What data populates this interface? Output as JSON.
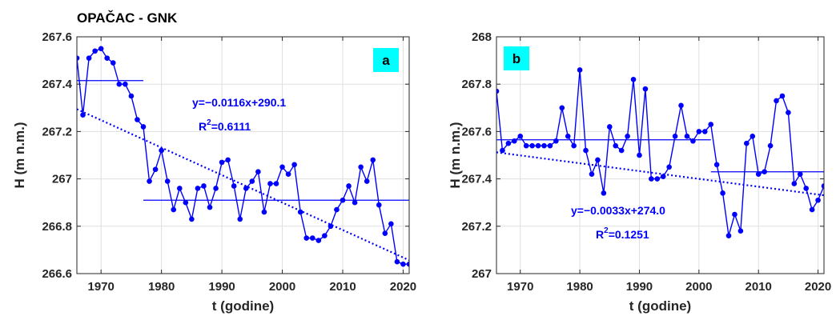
{
  "figure_title": "OPAČAC - GNK",
  "colors": {
    "series": "#0000ff",
    "label_box": "#00ffff",
    "axis": "#262626"
  },
  "chart_data": [
    {
      "type": "line",
      "panel_label": "a",
      "xlabel": "t (godine)",
      "ylabel": "H (m n.m.)",
      "xlim": [
        1966,
        2021
      ],
      "ylim": [
        266.6,
        267.6
      ],
      "xticks": [
        1970,
        1980,
        1990,
        2000,
        2010,
        2020
      ],
      "yticks": [
        266.6,
        266.8,
        267,
        267.2,
        267.4,
        267.6
      ],
      "ytick_labels": [
        "266.6",
        "266.8",
        "267",
        "267.2",
        "267.4",
        "267.6"
      ],
      "grid": true,
      "x": [
        1966,
        1967,
        1968,
        1969,
        1970,
        1971,
        1972,
        1973,
        1974,
        1975,
        1976,
        1977,
        1978,
        1979,
        1980,
        1981,
        1982,
        1983,
        1984,
        1985,
        1986,
        1987,
        1988,
        1989,
        1990,
        1991,
        1992,
        1993,
        1994,
        1995,
        1996,
        1997,
        1998,
        1999,
        2000,
        2001,
        2002,
        2003,
        2004,
        2005,
        2006,
        2007,
        2008,
        2009,
        2010,
        2011,
        2012,
        2013,
        2014,
        2015,
        2016,
        2017,
        2018,
        2019,
        2020,
        2021
      ],
      "y": [
        267.51,
        267.27,
        267.51,
        267.54,
        267.55,
        267.51,
        267.49,
        267.4,
        267.4,
        267.35,
        267.25,
        267.22,
        266.99,
        267.04,
        267.12,
        266.99,
        266.87,
        266.96,
        266.9,
        266.83,
        266.96,
        266.97,
        266.88,
        266.96,
        267.07,
        267.08,
        266.97,
        266.83,
        266.96,
        266.99,
        267.03,
        266.86,
        266.98,
        266.98,
        267.05,
        267.02,
        267.06,
        266.86,
        266.75,
        266.75,
        266.74,
        266.76,
        266.8,
        266.87,
        266.91,
        266.97,
        266.9,
        267.05,
        266.99,
        267.08,
        266.89,
        266.77,
        266.81,
        266.65,
        266.64,
        266.64
      ],
      "trend": {
        "slope": -0.0116,
        "intercept": 290.1,
        "equation": "y=−0.0116x+290.1",
        "r2_label": "R",
        "r2_value": "=0.6111"
      },
      "period_means": [
        {
          "x0": 1966,
          "x1": 1977,
          "y": 267.415
        },
        {
          "x0": 1977,
          "x1": 2021,
          "y": 266.91
        }
      ]
    },
    {
      "type": "line",
      "panel_label": "b",
      "xlabel": "t (godine)",
      "ylabel": "H (m n.m.)",
      "xlim": [
        1966,
        2021
      ],
      "ylim": [
        267,
        268
      ],
      "xticks": [
        1970,
        1980,
        1990,
        2000,
        2010,
        2020
      ],
      "yticks": [
        267,
        267.2,
        267.4,
        267.6,
        267.8,
        268
      ],
      "ytick_labels": [
        "267",
        "267.2",
        "267.4",
        "267.6",
        "267.8",
        "268"
      ],
      "grid": true,
      "x": [
        1966,
        1967,
        1968,
        1969,
        1970,
        1971,
        1972,
        1973,
        1974,
        1975,
        1976,
        1977,
        1978,
        1979,
        1980,
        1981,
        1982,
        1983,
        1984,
        1985,
        1986,
        1987,
        1988,
        1989,
        1990,
        1991,
        1992,
        1993,
        1994,
        1995,
        1996,
        1997,
        1998,
        1999,
        2000,
        2001,
        2002,
        2003,
        2004,
        2005,
        2006,
        2007,
        2008,
        2009,
        2010,
        2011,
        2012,
        2013,
        2014,
        2015,
        2016,
        2017,
        2018,
        2019,
        2020,
        2021
      ],
      "y": [
        267.77,
        267.52,
        267.55,
        267.56,
        267.58,
        267.54,
        267.54,
        267.54,
        267.54,
        267.54,
        267.56,
        267.7,
        267.58,
        267.54,
        267.86,
        267.52,
        267.42,
        267.48,
        267.34,
        267.62,
        267.54,
        267.52,
        267.58,
        267.82,
        267.5,
        267.78,
        267.4,
        267.4,
        267.41,
        267.45,
        267.58,
        267.71,
        267.58,
        267.56,
        267.6,
        267.6,
        267.63,
        267.46,
        267.34,
        267.16,
        267.25,
        267.18,
        267.55,
        267.58,
        267.42,
        267.43,
        267.54,
        267.73,
        267.75,
        267.68,
        267.38,
        267.42,
        267.36,
        267.27,
        267.31,
        267.37
      ],
      "trend": {
        "slope": -0.0033,
        "intercept": 274.0,
        "equation": "y=−0.0033x+274.0",
        "r2_label": "R",
        "r2_value": "=0.1251"
      },
      "period_means": [
        {
          "x0": 1966,
          "x1": 2002,
          "y": 267.565
        },
        {
          "x0": 2002,
          "x1": 2021,
          "y": 267.43
        }
      ]
    }
  ]
}
